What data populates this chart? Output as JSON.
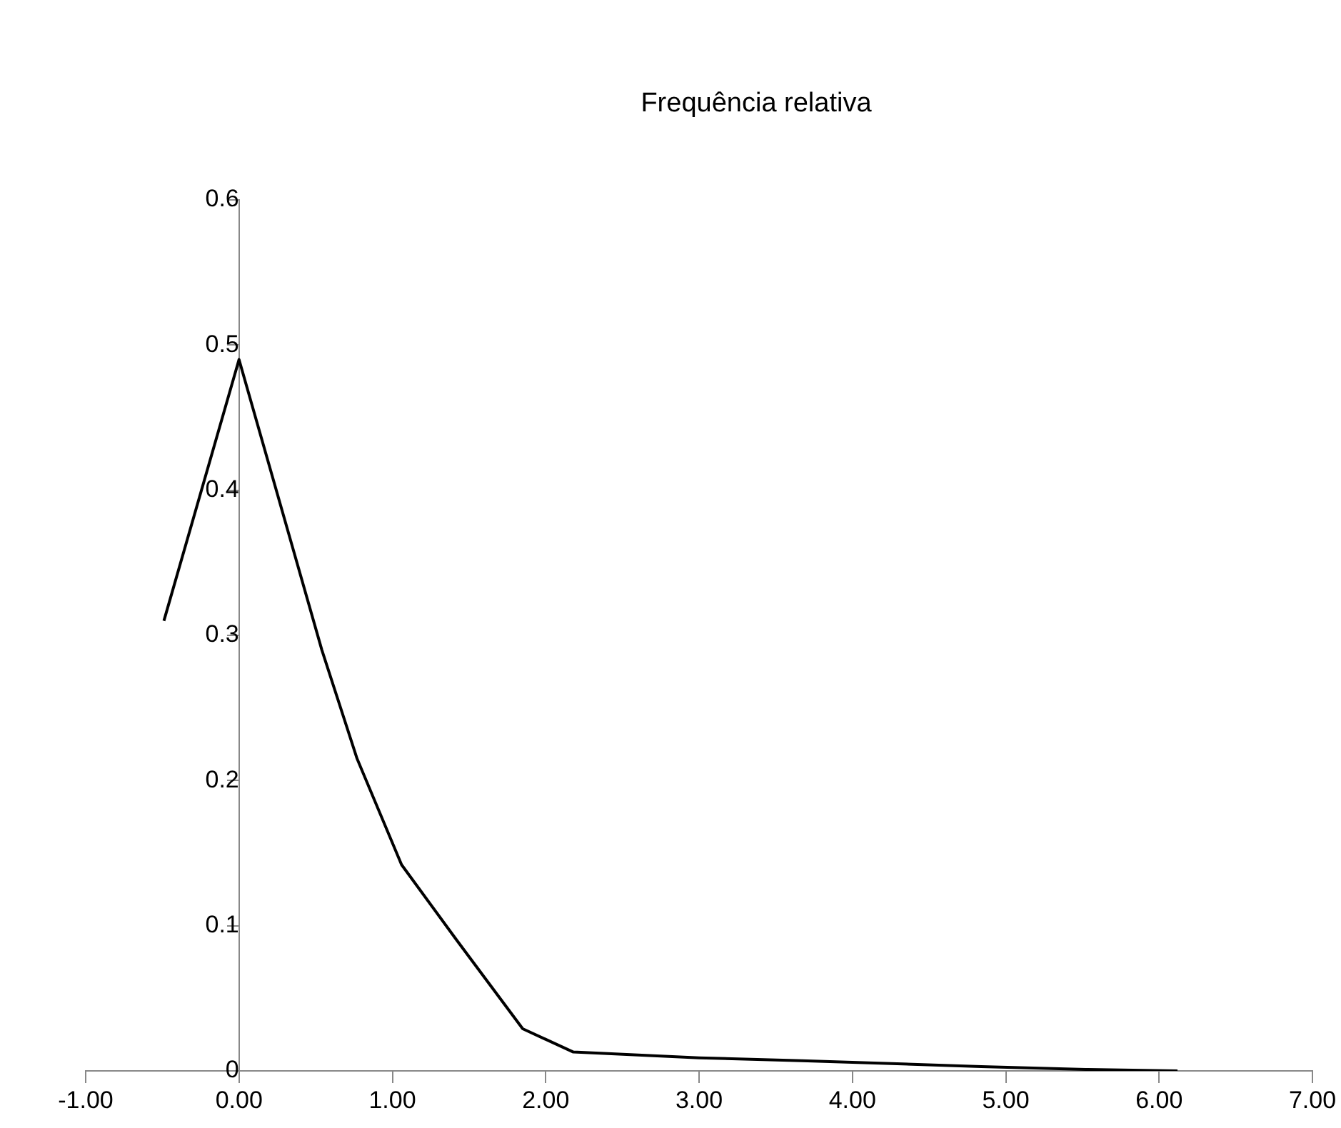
{
  "chart_data": {
    "type": "line",
    "title": "Frequência relativa",
    "xlim": [
      -1,
      7
    ],
    "xticks": [
      {
        "value": -1,
        "label": "-1.00"
      },
      {
        "value": 0,
        "label": "0.00"
      },
      {
        "value": 1,
        "label": "1.00"
      },
      {
        "value": 2,
        "label": "2.00"
      },
      {
        "value": 3,
        "label": "3.00"
      },
      {
        "value": 4,
        "label": "4.00"
      },
      {
        "value": 5,
        "label": "5.00"
      },
      {
        "value": 6,
        "label": "6.00"
      },
      {
        "value": 7,
        "label": "7.00"
      }
    ],
    "ylim": [
      0,
      0.6
    ],
    "yticks": [
      0,
      0.1,
      0.2,
      0.3,
      0.4,
      0.5,
      0.6
    ],
    "grid": false,
    "legend": false,
    "marker": "none",
    "series": [
      {
        "color": "#000000",
        "x": [
          -0.49,
          0,
          0.54,
          0.77,
          1.06,
          1.42,
          1.85,
          2.18,
          3,
          3.67,
          4.84,
          5.52,
          6.12
        ],
        "values": [
          0.31,
          0.49,
          0.29,
          0.215,
          0.142,
          0.09,
          0.029,
          0.013,
          0.009,
          0.007,
          0.003,
          0.001,
          0
        ]
      }
    ]
  }
}
